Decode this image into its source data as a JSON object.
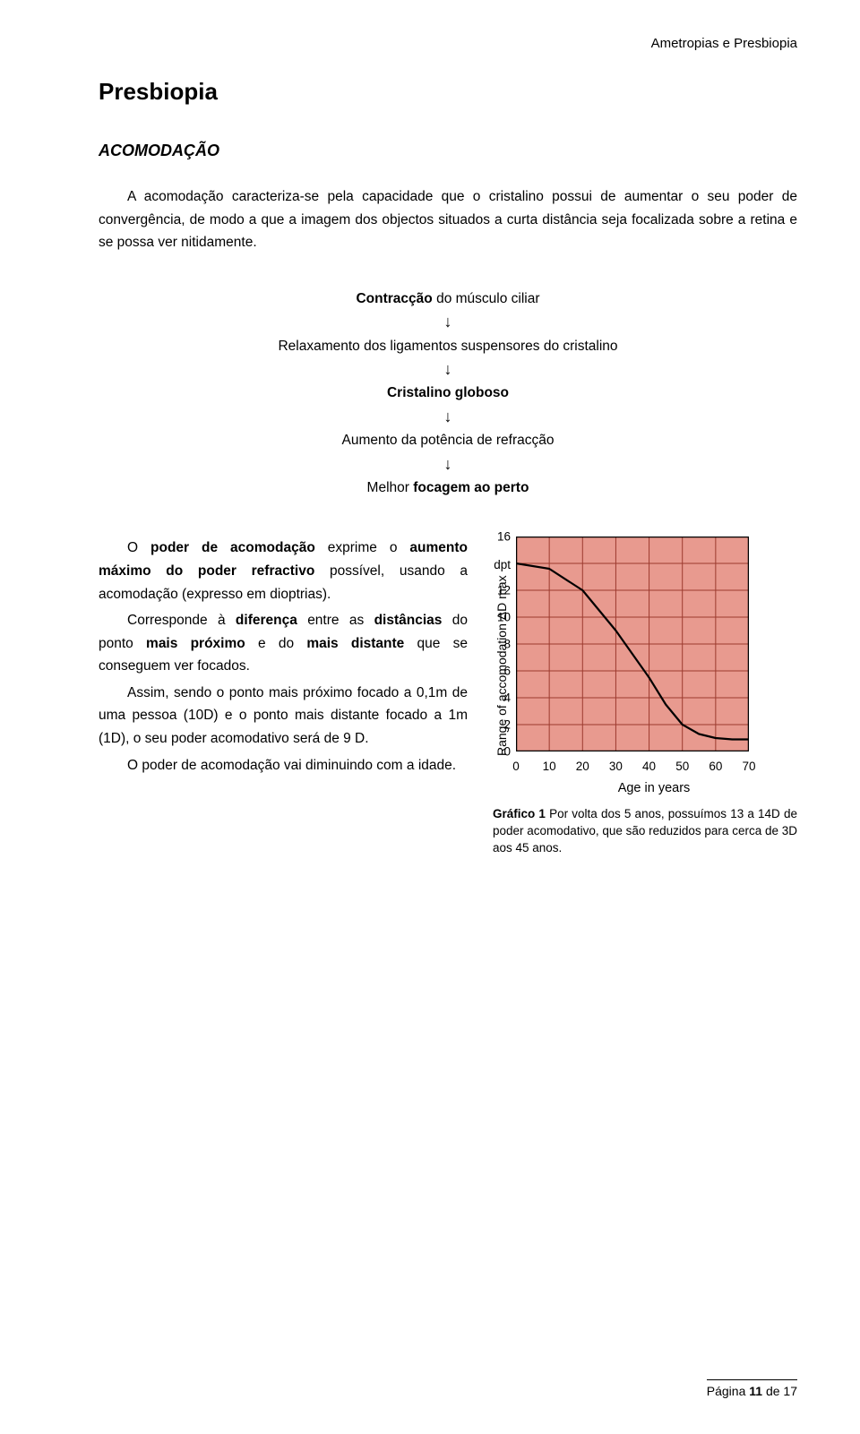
{
  "header": {
    "doc_title": "Ametropias e Presbiopia"
  },
  "title": "Presbiopia",
  "section": "ACOMODAÇÃO",
  "intro": "A acomodação caracteriza-se pela capacidade que o cristalino possui de aumentar o seu poder de convergência, de modo a que a imagem dos objectos situados a curta distância seja focalizada sobre a retina e se possa ver nitidamente.",
  "flow": {
    "step1_bold": "Contracção",
    "step1_rest": " do músculo ciliar",
    "step2": "Relaxamento dos ligamentos suspensores do cristalino",
    "step3_bold": "Cristalino globoso",
    "step4": "Aumento da potência de refracção",
    "step5_pre": "Melhor ",
    "step5_bold": "focagem ao perto",
    "arrow": "↓"
  },
  "body": {
    "p1_pre": "O ",
    "p1_b1": "poder de acomodação",
    "p1_mid": " exprime o ",
    "p1_b2": "aumento máximo do poder refractivo",
    "p1_post": " possível, usando a acomodação (expresso em dioptrias).",
    "p2_pre": "Corresponde à ",
    "p2_b1": "diferença",
    "p2_mid1": " entre as ",
    "p2_b2": "distâncias",
    "p2_mid2": " do ponto ",
    "p2_b3": "mais próximo",
    "p2_mid3": " e do ",
    "p2_b4": "mais distante",
    "p2_post": " que se conseguem ver focados.",
    "p3": "Assim, sendo o ponto mais próximo focado a 0,1m de uma pessoa (10D) e o ponto mais distante focado a 1m (1D), o seu poder acomodativo será de 9 D.",
    "p4": "O poder de acomodação vai diminuindo com a idade."
  },
  "chart": {
    "type": "line",
    "ylabel": "Range of accomodation ΔD max",
    "xlabel": "Age in years",
    "y_unit": "dpt",
    "xlim": [
      0,
      70
    ],
    "ylim": [
      0,
      16
    ],
    "xticks": [
      0,
      10,
      20,
      30,
      40,
      50,
      60,
      70
    ],
    "yticks": [
      0,
      2,
      4,
      6,
      8,
      10,
      12,
      16
    ],
    "grid_major_x": [
      0,
      10,
      20,
      30,
      40,
      50,
      60,
      70
    ],
    "grid_major_y": [
      0,
      2,
      4,
      6,
      8,
      10,
      12,
      14,
      16
    ],
    "plot_bg": "#e89a8f",
    "grid_color": "#9c3a2e",
    "border_color": "#000000",
    "line_color": "#000000",
    "line_width": 2.2,
    "points": [
      {
        "x": 0,
        "y": 14
      },
      {
        "x": 10,
        "y": 13.6
      },
      {
        "x": 20,
        "y": 12
      },
      {
        "x": 30,
        "y": 9
      },
      {
        "x": 40,
        "y": 5.5
      },
      {
        "x": 45,
        "y": 3.5
      },
      {
        "x": 50,
        "y": 2
      },
      {
        "x": 55,
        "y": 1.3
      },
      {
        "x": 60,
        "y": 1
      },
      {
        "x": 65,
        "y": 0.9
      },
      {
        "x": 70,
        "y": 0.9
      }
    ]
  },
  "caption": {
    "b": "Gráfico 1",
    "text": " Por volta dos 5 anos, possuímos 13 a 14D de poder acomodativo, que são reduzidos para cerca de 3D aos 45 anos."
  },
  "footer": {
    "pre": "Página ",
    "cur": "11",
    "post": " de 17"
  }
}
